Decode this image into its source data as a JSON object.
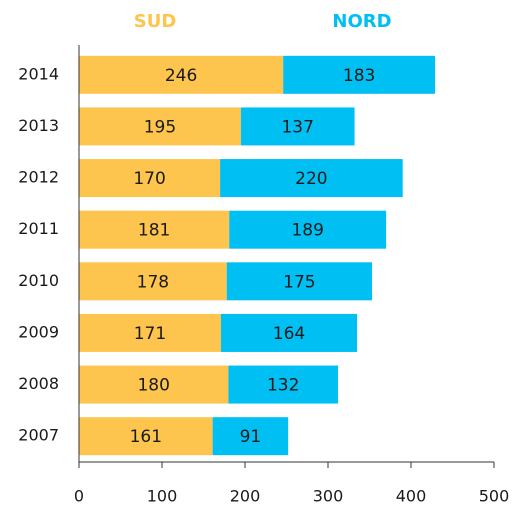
{
  "chart_data": {
    "type": "stacked_barh",
    "categories": [
      "2014",
      "2013",
      "2012",
      "2011",
      "2010",
      "2009",
      "2008",
      "2007"
    ],
    "series": [
      {
        "name": "SUD",
        "color": "#fdc54e",
        "values": [
          246,
          195,
          170,
          181,
          178,
          171,
          180,
          161
        ]
      },
      {
        "name": "NORD",
        "color": "#00bff3",
        "values": [
          183,
          137,
          220,
          189,
          175,
          164,
          132,
          91
        ]
      }
    ],
    "xlim": [
      0,
      500
    ],
    "xticks": [
      0,
      100,
      200,
      300,
      400,
      500
    ]
  }
}
